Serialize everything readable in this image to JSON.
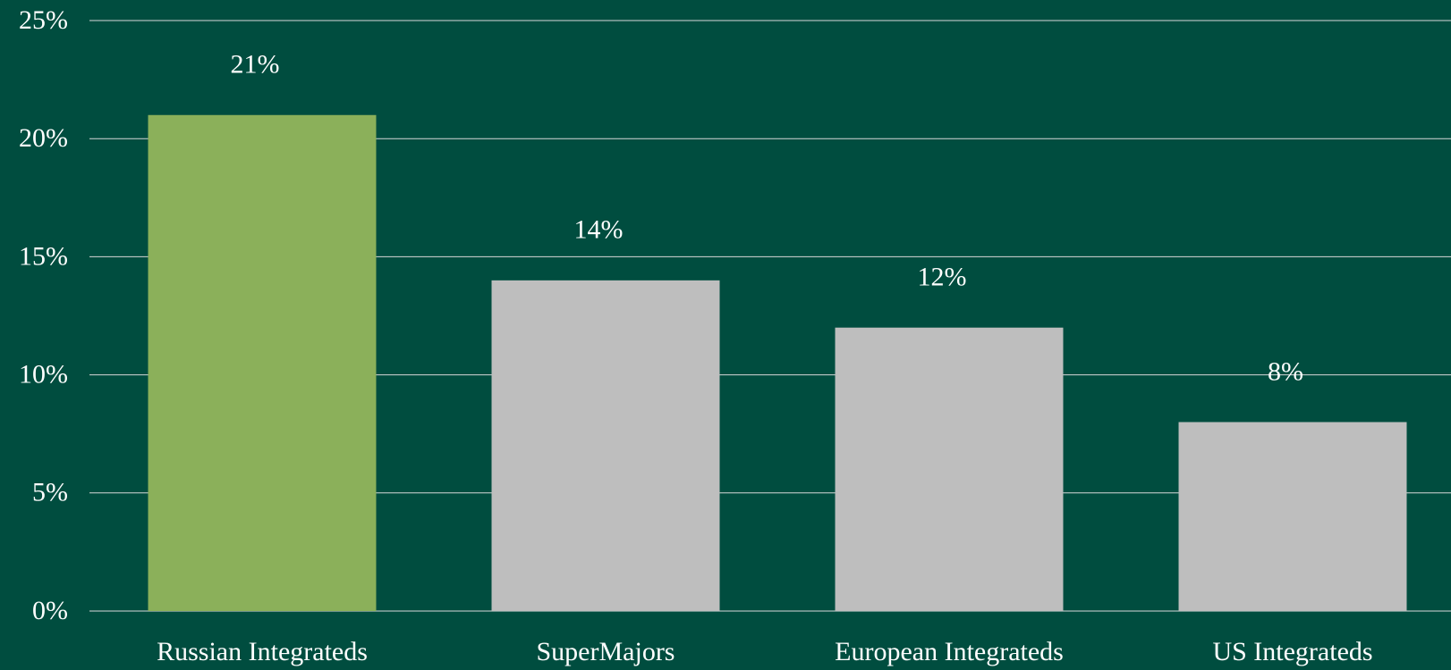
{
  "chart_data": {
    "type": "bar",
    "categories": [
      "Russian Integrateds",
      "SuperMajors",
      "European Integrateds",
      "US Integrateds"
    ],
    "values": [
      21,
      14,
      12,
      8
    ],
    "value_labels": [
      "21%",
      "14%",
      "12%",
      "8%"
    ],
    "colors": [
      "#8bb05a",
      "#bebebe",
      "#bebebe",
      "#bebebe"
    ],
    "ylim": [
      0,
      25
    ],
    "yticks": [
      {
        "value": 0,
        "label": "0%"
      },
      {
        "value": 5,
        "label": "5%"
      },
      {
        "value": 10,
        "label": "10%"
      },
      {
        "value": 15,
        "label": "15%"
      },
      {
        "value": 20,
        "label": "20%"
      },
      {
        "value": 25,
        "label": "25%"
      }
    ],
    "grid": true
  }
}
